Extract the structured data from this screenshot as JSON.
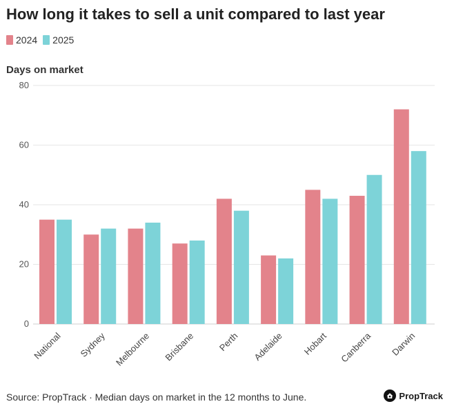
{
  "colors": {
    "s2024": "#e3838b",
    "s2025": "#7dd3d8",
    "grid": "#e6e6e6",
    "axis": "#cfcfcf"
  },
  "chart_data": {
    "type": "bar",
    "title": "How long it takes to sell a unit compared to last year",
    "xlabel": "",
    "ylabel": "Days on market",
    "ylim": [
      0,
      80
    ],
    "yticks": [
      0,
      20,
      40,
      60,
      80
    ],
    "categories": [
      "National",
      "Sydney",
      "Melbourne",
      "Brisbane",
      "Perth",
      "Adelaide",
      "Hobart",
      "Canberra",
      "Darwin"
    ],
    "series": [
      {
        "name": "2024",
        "values": [
          35,
          30,
          32,
          27,
          42,
          23,
          45,
          43,
          72
        ]
      },
      {
        "name": "2025",
        "values": [
          35,
          32,
          34,
          28,
          38,
          22,
          42,
          50,
          58
        ]
      }
    ],
    "legend_position": "top-left",
    "grid": true
  },
  "footer": {
    "source": "Source: PropTrack · Median days on market in the 12 months to June."
  },
  "brand": {
    "name": "PropTrack",
    "icon": "proptrack-logo-icon"
  }
}
